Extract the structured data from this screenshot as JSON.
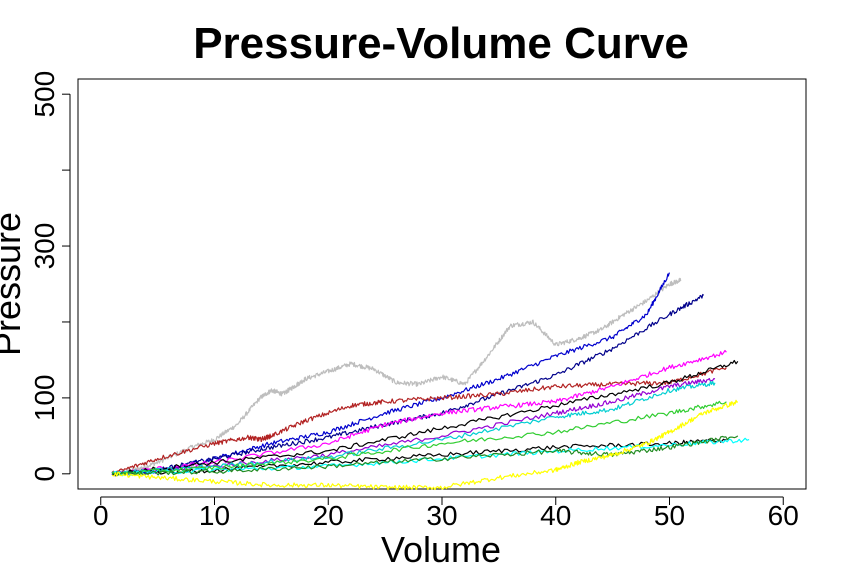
{
  "chart_data": {
    "type": "line",
    "title": "Pressure-Volume Curve",
    "xlabel": "Volume",
    "ylabel": "Pressure",
    "xlim": [
      -2,
      62
    ],
    "ylim": [
      -20,
      520
    ],
    "xticks": [
      0,
      10,
      20,
      30,
      40,
      50,
      60
    ],
    "yticks": [
      0,
      100,
      200,
      300,
      400,
      500
    ],
    "ytick_labels": [
      "0",
      "100",
      "",
      "300",
      "",
      "500"
    ],
    "grid": false,
    "legend": "none",
    "series": [
      {
        "color": "#bebebe",
        "points": [
          [
            1,
            0
          ],
          [
            3,
            5
          ],
          [
            5,
            15
          ],
          [
            8,
            35
          ],
          [
            10,
            45
          ],
          [
            12,
            65
          ],
          [
            14,
            100
          ],
          [
            15,
            110
          ],
          [
            16,
            105
          ],
          [
            17,
            115
          ],
          [
            18,
            125
          ],
          [
            20,
            135
          ],
          [
            22,
            145
          ],
          [
            24,
            138
          ],
          [
            26,
            120
          ],
          [
            28,
            118
          ],
          [
            30,
            128
          ],
          [
            32,
            118
          ],
          [
            34,
            155
          ],
          [
            36,
            195
          ],
          [
            38,
            200
          ],
          [
            40,
            170
          ],
          [
            42,
            178
          ],
          [
            44,
            190
          ],
          [
            46,
            210
          ],
          [
            48,
            228
          ],
          [
            50,
            250
          ],
          [
            51,
            255
          ]
        ]
      },
      {
        "color": "#0000cd",
        "points": [
          [
            1,
            0
          ],
          [
            5,
            3
          ],
          [
            10,
            20
          ],
          [
            15,
            40
          ],
          [
            20,
            55
          ],
          [
            25,
            80
          ],
          [
            30,
            100
          ],
          [
            35,
            125
          ],
          [
            40,
            155
          ],
          [
            45,
            180
          ],
          [
            48,
            210
          ],
          [
            50,
            265
          ]
        ]
      },
      {
        "color": "#00008b",
        "points": [
          [
            1,
            0
          ],
          [
            5,
            5
          ],
          [
            10,
            20
          ],
          [
            15,
            35
          ],
          [
            20,
            48
          ],
          [
            25,
            65
          ],
          [
            30,
            80
          ],
          [
            35,
            105
          ],
          [
            40,
            130
          ],
          [
            45,
            165
          ],
          [
            50,
            210
          ],
          [
            53,
            235
          ]
        ]
      },
      {
        "color": "#b22222",
        "points": [
          [
            1,
            0
          ],
          [
            5,
            20
          ],
          [
            10,
            40
          ],
          [
            13,
            48
          ],
          [
            14,
            45
          ],
          [
            15,
            50
          ],
          [
            18,
            70
          ],
          [
            22,
            90
          ],
          [
            25,
            95
          ],
          [
            30,
            100
          ],
          [
            35,
            105
          ],
          [
            40,
            115
          ],
          [
            45,
            118
          ],
          [
            50,
            120
          ],
          [
            55,
            140
          ]
        ]
      },
      {
        "color": "#ff00ff",
        "points": [
          [
            1,
            0
          ],
          [
            10,
            15
          ],
          [
            20,
            40
          ],
          [
            25,
            65
          ],
          [
            30,
            80
          ],
          [
            35,
            88
          ],
          [
            40,
            95
          ],
          [
            45,
            115
          ],
          [
            50,
            140
          ],
          [
            55,
            160
          ]
        ]
      },
      {
        "color": "#9400d3",
        "points": [
          [
            1,
            0
          ],
          [
            10,
            10
          ],
          [
            20,
            25
          ],
          [
            30,
            50
          ],
          [
            40,
            80
          ],
          [
            45,
            95
          ],
          [
            50,
            115
          ],
          [
            54,
            125
          ]
        ]
      },
      {
        "color": "#000000",
        "points": [
          [
            1,
            0
          ],
          [
            10,
            15
          ],
          [
            20,
            30
          ],
          [
            30,
            60
          ],
          [
            40,
            90
          ],
          [
            50,
            120
          ],
          [
            56,
            148
          ]
        ]
      },
      {
        "color": "#000000",
        "points": [
          [
            1,
            0
          ],
          [
            10,
            5
          ],
          [
            20,
            15
          ],
          [
            30,
            25
          ],
          [
            40,
            35
          ],
          [
            50,
            40
          ],
          [
            55,
            45
          ]
        ]
      },
      {
        "color": "#00ced1",
        "points": [
          [
            1,
            0
          ],
          [
            10,
            10
          ],
          [
            20,
            22
          ],
          [
            30,
            45
          ],
          [
            40,
            75
          ],
          [
            45,
            85
          ],
          [
            50,
            110
          ],
          [
            54,
            120
          ]
        ]
      },
      {
        "color": "#00ffff",
        "points": [
          [
            1,
            0
          ],
          [
            10,
            5
          ],
          [
            20,
            10
          ],
          [
            30,
            20
          ],
          [
            40,
            30
          ],
          [
            50,
            38
          ],
          [
            57,
            45
          ]
        ]
      },
      {
        "color": "#32cd32",
        "points": [
          [
            1,
            0
          ],
          [
            10,
            8
          ],
          [
            20,
            20
          ],
          [
            30,
            40
          ],
          [
            40,
            55
          ],
          [
            50,
            80
          ],
          [
            55,
            95
          ]
        ]
      },
      {
        "color": "#228b22",
        "points": [
          [
            1,
            0
          ],
          [
            10,
            3
          ],
          [
            20,
            10
          ],
          [
            30,
            20
          ],
          [
            40,
            30
          ],
          [
            45,
            25
          ],
          [
            50,
            35
          ],
          [
            56,
            50
          ]
        ]
      },
      {
        "color": "#ffff00",
        "points": [
          [
            1,
            0
          ],
          [
            5,
            -5
          ],
          [
            10,
            -10
          ],
          [
            15,
            -15
          ],
          [
            20,
            -15
          ],
          [
            25,
            -18
          ],
          [
            30,
            -18
          ],
          [
            35,
            -5
          ],
          [
            40,
            5
          ],
          [
            42,
            15
          ],
          [
            45,
            25
          ],
          [
            48,
            40
          ],
          [
            50,
            55
          ],
          [
            53,
            80
          ],
          [
            56,
            95
          ]
        ]
      }
    ]
  }
}
